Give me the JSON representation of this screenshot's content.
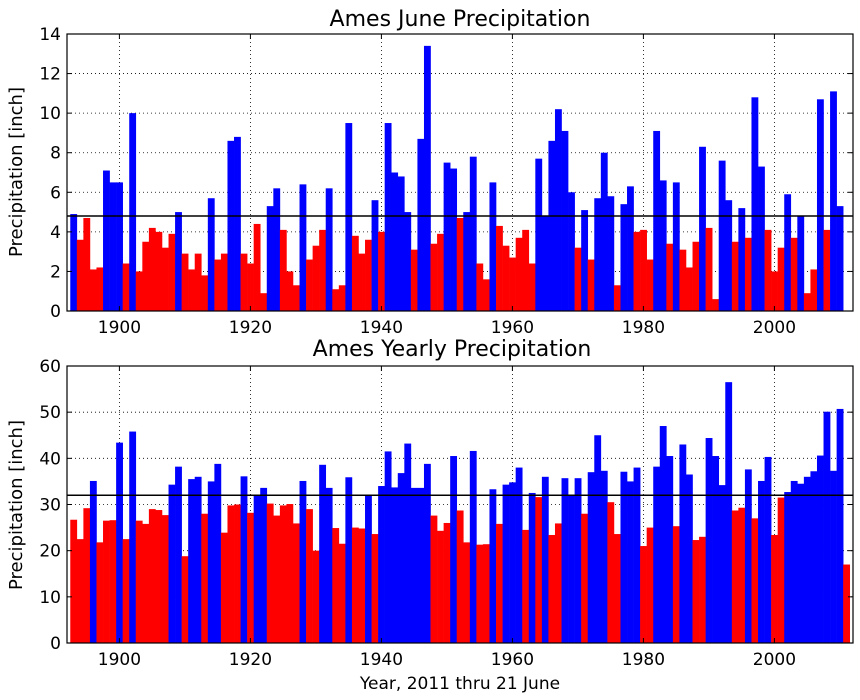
{
  "chart_data": [
    {
      "type": "bar",
      "title": "Ames June Precipitation",
      "xlabel": "",
      "ylabel": "Precipitation [inch]",
      "xlim": [
        1892,
        2012
      ],
      "ylim": [
        0,
        14
      ],
      "xticks": [
        1900,
        1920,
        1940,
        1960,
        1980,
        2000
      ],
      "yticks": [
        0,
        2,
        4,
        6,
        8,
        10,
        12,
        14
      ],
      "grid": true,
      "average_line": 4.8,
      "colors": {
        "above": "#0000ff",
        "below": "#ff0000"
      },
      "x_start": 1893,
      "values": [
        4.9,
        3.6,
        4.7,
        2.1,
        2.2,
        7.1,
        6.5,
        6.5,
        2.4,
        10.0,
        2.0,
        3.5,
        4.2,
        4.0,
        3.2,
        3.9,
        5.0,
        2.9,
        2.1,
        2.9,
        1.8,
        5.7,
        2.6,
        2.9,
        8.6,
        8.8,
        2.9,
        2.4,
        4.4,
        0.9,
        5.3,
        6.2,
        4.1,
        2.0,
        1.3,
        6.4,
        2.6,
        3.3,
        4.1,
        6.2,
        1.1,
        1.3,
        9.5,
        3.8,
        2.9,
        3.6,
        5.6,
        4.0,
        9.5,
        7.0,
        6.8,
        5.0,
        3.1,
        8.7,
        13.4,
        3.4,
        3.9,
        7.5,
        7.2,
        4.7,
        5.0,
        7.8,
        2.4,
        1.6,
        6.5,
        4.3,
        3.3,
        2.7,
        3.7,
        4.1,
        2.4,
        7.7,
        4.8,
        8.6,
        10.2,
        9.1,
        6.0,
        3.2,
        5.1,
        2.6,
        5.7,
        8.0,
        5.8,
        1.3,
        5.4,
        6.3,
        4.0,
        4.1,
        2.6,
        9.1,
        6.6,
        3.4,
        6.5,
        3.1,
        2.2,
        3.5,
        8.3,
        4.2,
        0.6,
        7.6,
        5.6,
        3.5,
        5.2,
        3.7,
        10.8,
        7.3,
        4.1,
        2.0,
        3.2,
        5.9,
        3.7,
        4.8,
        0.9,
        2.1,
        10.7,
        4.1,
        11.1,
        5.3
      ]
    },
    {
      "type": "bar",
      "title": "Ames Yearly Precipitation",
      "xlabel": "Year, 2011 thru 21 June",
      "ylabel": "Precipitation [inch]",
      "xlim": [
        1892,
        2012
      ],
      "ylim": [
        0,
        60
      ],
      "xticks": [
        1900,
        1920,
        1940,
        1960,
        1980,
        2000
      ],
      "yticks": [
        0,
        10,
        20,
        30,
        40,
        50,
        60
      ],
      "grid": true,
      "average_line": 32,
      "colors": {
        "above": "#0000ff",
        "below": "#ff0000"
      },
      "x_start": 1893,
      "values": [
        26.7,
        22.5,
        29.2,
        35.1,
        21.8,
        26.5,
        26.6,
        43.4,
        22.5,
        45.8,
        26.5,
        25.8,
        29.0,
        28.8,
        27.7,
        34.3,
        38.2,
        18.8,
        35.5,
        36.0,
        28.0,
        35.0,
        38.8,
        23.9,
        29.8,
        30.0,
        36.1,
        28.2,
        32.0,
        33.6,
        30.2,
        27.6,
        29.8,
        30.1,
        25.9,
        35.1,
        29.0,
        20.0,
        38.6,
        33.6,
        24.9,
        21.5,
        35.9,
        25.0,
        24.8,
        32.0,
        23.6,
        34.0,
        41.5,
        33.7,
        36.8,
        43.2,
        33.6,
        33.6,
        38.8,
        27.6,
        24.3,
        26.0,
        40.5,
        28.7,
        21.8,
        41.6,
        21.3,
        21.4,
        33.3,
        25.8,
        34.3,
        34.8,
        38.0,
        24.5,
        32.5,
        31.6,
        36.0,
        23.4,
        25.9,
        35.7,
        32.0,
        35.7,
        28.0,
        37.0,
        45.0,
        37.3,
        30.5,
        23.6,
        37.1,
        35.0,
        38.0,
        21.0,
        25.0,
        38.2,
        47.0,
        40.5,
        25.3,
        43.0,
        36.5,
        22.3,
        23.0,
        44.4,
        40.5,
        34.2,
        56.5,
        28.7,
        29.3,
        37.6,
        27.0,
        35.1,
        40.3,
        23.4,
        31.5,
        32.7,
        35.1,
        34.5,
        36.0,
        37.2,
        40.6,
        50.1,
        37.3,
        50.7,
        17.0
      ]
    }
  ]
}
